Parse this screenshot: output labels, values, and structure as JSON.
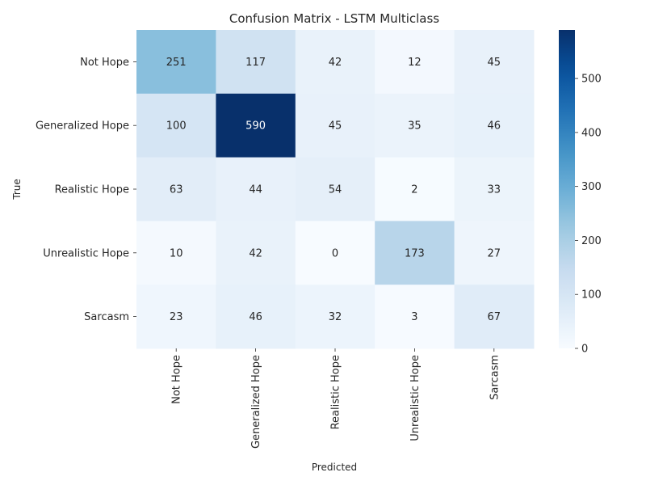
{
  "chart_data": {
    "type": "heatmap",
    "title": "Confusion Matrix - LSTM Multiclass",
    "xlabel": "Predicted",
    "ylabel": "True",
    "x_categories": [
      "Not Hope",
      "Generalized Hope",
      "Realistic Hope",
      "Unrealistic Hope",
      "Sarcasm"
    ],
    "y_categories": [
      "Not Hope",
      "Generalized Hope",
      "Realistic Hope",
      "Unrealistic Hope",
      "Sarcasm"
    ],
    "values": [
      [
        251,
        117,
        42,
        12,
        45
      ],
      [
        100,
        590,
        45,
        35,
        46
      ],
      [
        63,
        44,
        54,
        2,
        33
      ],
      [
        10,
        42,
        0,
        173,
        27
      ],
      [
        23,
        46,
        32,
        3,
        67
      ]
    ],
    "colormap": "Blues",
    "colorbar": {
      "range": [
        0,
        590
      ],
      "ticks": [
        0,
        100,
        200,
        300,
        400,
        500
      ]
    },
    "annotations": true,
    "grid": false
  }
}
